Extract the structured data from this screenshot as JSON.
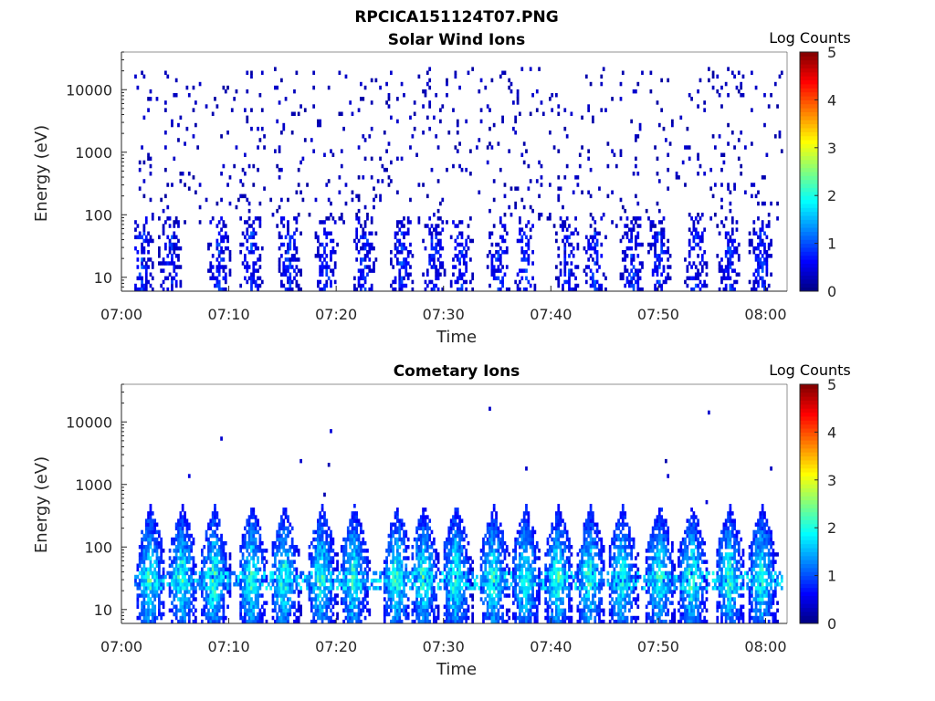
{
  "figure": {
    "suptitle": "RPCICA151124T07.PNG"
  },
  "chart_data": [
    {
      "type": "heatmap",
      "title": "Solar Wind Ions",
      "xlabel": "Time",
      "ylabel": "Energy (eV)",
      "x_range": [
        "07:00",
        "08:02"
      ],
      "x_ticks": [
        "07:00",
        "07:10",
        "07:20",
        "07:30",
        "07:40",
        "07:50",
        "08:00"
      ],
      "y_scale": "log",
      "ylim": [
        6,
        40000
      ],
      "y_ticks": [
        10,
        100,
        1000,
        10000
      ],
      "y_tick_labels": [
        "10",
        "100",
        "1000",
        "10000"
      ],
      "colorbar": {
        "title": "Log Counts",
        "range": [
          0,
          5
        ],
        "ticks": [
          "0",
          "1",
          "2",
          "3",
          "4",
          "5"
        ],
        "colormap": "jet"
      },
      "description_of_data": "Sparse scatter of low counts (log ~0-0.5) across 100-20000 eV; periodic bursts (every ~3-4 min) of counts ~0.5-1.5 at 10-50 eV.",
      "burst_minutes": [
        1.8,
        4.5,
        9.0,
        12.0,
        15.5,
        19.0,
        22.5,
        26.0,
        29.0,
        31.5,
        35.0,
        37.5,
        41.5,
        44.0,
        47.5,
        50.0,
        53.5,
        56.5,
        59.5
      ]
    },
    {
      "type": "heatmap",
      "title": "Cometary Ions",
      "xlabel": "Time",
      "ylabel": "Energy (eV)",
      "x_range": [
        "07:00",
        "08:02"
      ],
      "x_ticks": [
        "07:00",
        "07:10",
        "07:20",
        "07:30",
        "07:40",
        "07:50",
        "08:00"
      ],
      "y_scale": "log",
      "ylim": [
        6,
        40000
      ],
      "y_ticks": [
        10,
        100,
        1000,
        10000
      ],
      "y_tick_labels": [
        "10",
        "100",
        "1000",
        "10000"
      ],
      "colorbar": {
        "title": "Log Counts",
        "range": [
          0,
          5
        ],
        "ticks": [
          "0",
          "1",
          "2",
          "3",
          "4",
          "5"
        ],
        "colormap": "jet"
      },
      "description_of_data": "Periodic plumes every ~3-4 min from ~6 eV up to ~300-500 eV; peak counts log ~2-2.5 near 20-40 eV; isolated points up to ~15000 eV.",
      "burst_minutes": [
        2.5,
        5.5,
        8.5,
        12.0,
        15.0,
        18.5,
        21.5,
        25.5,
        28.0,
        31.0,
        34.5,
        37.5,
        40.5,
        43.5,
        46.5,
        50.0,
        53.0,
        56.5,
        59.5
      ]
    }
  ]
}
